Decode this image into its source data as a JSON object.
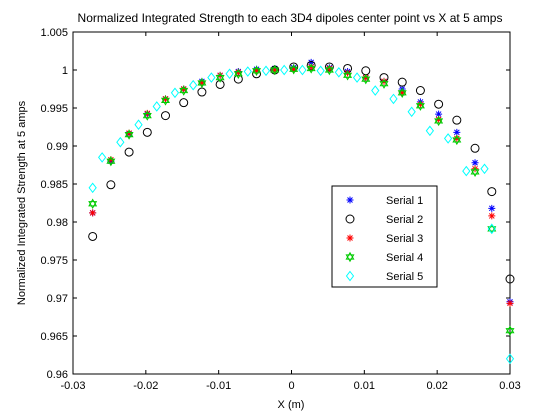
{
  "chart_data": {
    "type": "scatter",
    "title": "Normalized Integrated Strength to each 3D4 dipoles center point vs X at 5 amps",
    "xlabel": "X (m)",
    "ylabel": "Normalized Integrated Strength at 5 amps",
    "xlim": [
      -0.03,
      0.03
    ],
    "ylim": [
      0.96,
      1.005
    ],
    "x_ticks": [
      "-0.03",
      "-0.02",
      "-0.01",
      "0",
      "0.01",
      "0.02",
      "0.03"
    ],
    "y_ticks": [
      "0.96",
      "0.965",
      "0.97",
      "0.975",
      "0.98",
      "0.985",
      "0.99",
      "0.995",
      "1",
      "1.005"
    ],
    "grid": false,
    "legend_position": "lower-right",
    "series": [
      {
        "name": "Serial 1",
        "marker": "asterisk",
        "color": "#0000ff",
        "points": [
          [
            -0.0273,
            0.9812
          ],
          [
            -0.0248,
            0.988
          ],
          [
            -0.0223,
            0.9916
          ],
          [
            -0.0198,
            0.9942
          ],
          [
            -0.0173,
            0.9962
          ],
          [
            -0.0148,
            0.9975
          ],
          [
            -0.0123,
            0.9985
          ],
          [
            -0.0098,
            0.9993
          ],
          [
            -0.0073,
            0.9998
          ],
          [
            -0.0048,
            1.0001
          ],
          [
            -0.0023,
            1.0002
          ],
          [
            0.0003,
            1.0003
          ],
          [
            0.0027,
            1.001
          ],
          [
            0.0052,
            1.0003
          ],
          [
            0.0077,
            0.9998
          ],
          [
            0.0102,
            0.999
          ],
          [
            0.0127,
            0.9985
          ],
          [
            0.0152,
            0.9975
          ],
          [
            0.0177,
            0.9958
          ],
          [
            0.0202,
            0.9942
          ],
          [
            0.0227,
            0.9918
          ],
          [
            0.0252,
            0.9878
          ],
          [
            0.0275,
            0.9818
          ],
          [
            0.03,
            0.9695
          ]
        ]
      },
      {
        "name": "Serial 2",
        "marker": "circle",
        "color": "#000000",
        "points": [
          [
            -0.0273,
            0.9781
          ],
          [
            -0.0248,
            0.9849
          ],
          [
            -0.0223,
            0.9892
          ],
          [
            -0.0198,
            0.9918
          ],
          [
            -0.0173,
            0.994
          ],
          [
            -0.0148,
            0.9957
          ],
          [
            -0.0123,
            0.9971
          ],
          [
            -0.0098,
            0.9981
          ],
          [
            -0.0073,
            0.9988
          ],
          [
            -0.0048,
            0.9995
          ],
          [
            -0.0023,
            1.0
          ],
          [
            0.0003,
            1.0004
          ],
          [
            0.0027,
            1.0006
          ],
          [
            0.0052,
            1.0004
          ],
          [
            0.0077,
            1.0002
          ],
          [
            0.0102,
            0.9999
          ],
          [
            0.0127,
            0.999
          ],
          [
            0.0152,
            0.9984
          ],
          [
            0.0177,
            0.9973
          ],
          [
            0.0202,
            0.9955
          ],
          [
            0.0227,
            0.9934
          ],
          [
            0.0252,
            0.9897
          ],
          [
            0.0275,
            0.984
          ],
          [
            0.03,
            0.9725
          ]
        ]
      },
      {
        "name": "Serial 3",
        "marker": "asterisk",
        "color": "#ff0000",
        "points": [
          [
            -0.0273,
            0.9812
          ],
          [
            -0.0248,
            0.9882
          ],
          [
            -0.0223,
            0.9917
          ],
          [
            -0.0198,
            0.9943
          ],
          [
            -0.0173,
            0.9962
          ],
          [
            -0.0148,
            0.9975
          ],
          [
            -0.0123,
            0.9983
          ],
          [
            -0.0098,
            0.9993
          ],
          [
            -0.0073,
            0.9997
          ],
          [
            -0.0048,
            0.9999
          ],
          [
            -0.0023,
            1.0
          ],
          [
            0.0003,
            1.0001
          ],
          [
            0.0027,
            1.0004
          ],
          [
            0.0052,
            1.0002
          ],
          [
            0.0077,
            0.9996
          ],
          [
            0.0102,
            0.999
          ],
          [
            0.0127,
            0.9985
          ],
          [
            0.0152,
            0.997
          ],
          [
            0.0177,
            0.9955
          ],
          [
            0.0202,
            0.9935
          ],
          [
            0.0227,
            0.991
          ],
          [
            0.0252,
            0.987
          ],
          [
            0.0275,
            0.9808
          ],
          [
            0.03,
            0.9693
          ]
        ]
      },
      {
        "name": "Serial 4",
        "marker": "hexagram",
        "color": "#00cc00",
        "points": [
          [
            -0.0273,
            0.9824
          ],
          [
            -0.0248,
            0.988
          ],
          [
            -0.0223,
            0.9915
          ],
          [
            -0.0198,
            0.994
          ],
          [
            -0.0173,
            0.996
          ],
          [
            -0.0148,
            0.9973
          ],
          [
            -0.0123,
            0.9983
          ],
          [
            -0.0098,
            0.999
          ],
          [
            -0.0073,
            0.9995
          ],
          [
            -0.0048,
            0.9999
          ],
          [
            -0.0023,
            1.0
          ],
          [
            0.0003,
            1.0001
          ],
          [
            0.0027,
            1.0002
          ],
          [
            0.0052,
            1.0
          ],
          [
            0.0077,
            0.9993
          ],
          [
            0.0102,
            0.9988
          ],
          [
            0.0127,
            0.9982
          ],
          [
            0.0152,
            0.997
          ],
          [
            0.0177,
            0.9953
          ],
          [
            0.0202,
            0.9933
          ],
          [
            0.0227,
            0.9908
          ],
          [
            0.0252,
            0.9866
          ],
          [
            0.0275,
            0.9791
          ],
          [
            0.03,
            0.9657
          ]
        ]
      },
      {
        "name": "Serial 5",
        "marker": "diamond",
        "color": "#00ffff",
        "points": [
          [
            -0.0273,
            0.9845
          ],
          [
            -0.026,
            0.9885
          ],
          [
            -0.0235,
            0.9905
          ],
          [
            -0.021,
            0.9928
          ],
          [
            -0.0185,
            0.9952
          ],
          [
            -0.016,
            0.997
          ],
          [
            -0.0135,
            0.998
          ],
          [
            -0.011,
            0.999
          ],
          [
            -0.0085,
            0.9995
          ],
          [
            -0.006,
            0.9998
          ],
          [
            -0.0035,
            0.9999
          ],
          [
            -0.001,
            1.0
          ],
          [
            0.0015,
            1.0
          ],
          [
            0.004,
            0.9999
          ],
          [
            0.0065,
            0.9997
          ],
          [
            0.009,
            0.999
          ],
          [
            0.0115,
            0.9973
          ],
          [
            0.014,
            0.9962
          ],
          [
            0.0165,
            0.9945
          ],
          [
            0.019,
            0.992
          ],
          [
            0.0215,
            0.991
          ],
          [
            0.024,
            0.9867
          ],
          [
            0.0265,
            0.987
          ],
          [
            0.0275,
            0.9791
          ],
          [
            0.03,
            0.962
          ]
        ]
      }
    ]
  }
}
